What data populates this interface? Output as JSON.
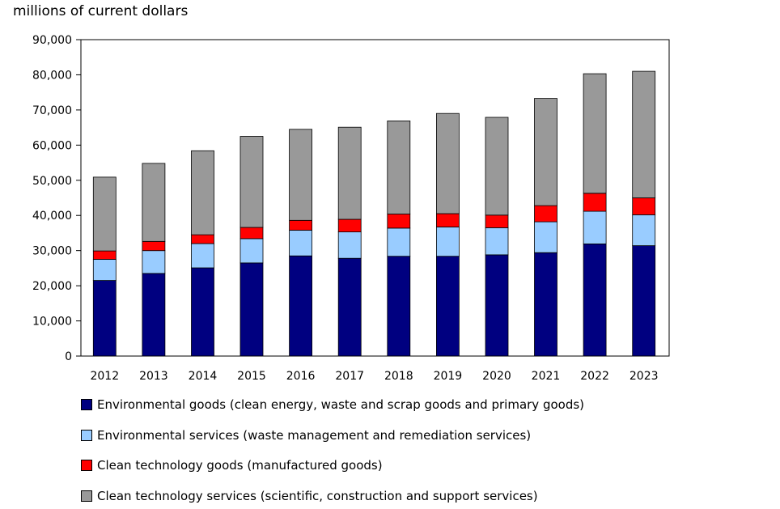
{
  "chart_data": {
    "type": "bar",
    "stacked": true,
    "title": "",
    "xlabel": "",
    "ylabel": "millions of current dollars",
    "ylim": [
      0,
      90000
    ],
    "yticks": [
      0,
      10000,
      20000,
      30000,
      40000,
      50000,
      60000,
      70000,
      80000,
      90000
    ],
    "ytick_labels": [
      "0",
      "10,000",
      "20,000",
      "30,000",
      "40,000",
      "50,000",
      "60,000",
      "70,000",
      "80,000",
      "90,000"
    ],
    "grid": false,
    "legend_position": "bottom",
    "categories": [
      "2012",
      "2013",
      "2014",
      "2015",
      "2016",
      "2017",
      "2018",
      "2019",
      "2020",
      "2021",
      "2022",
      "2023"
    ],
    "series": [
      {
        "name": "Environmental goods (clean energy, waste and scrap goods and primary goods)",
        "color": "#000080",
        "values": [
          21500,
          23500,
          25100,
          26500,
          28500,
          27800,
          28400,
          28400,
          28800,
          29400,
          31900,
          31400
        ]
      },
      {
        "name": "Environmental services (waste management and remediation services)",
        "color": "#99ccff",
        "values": [
          6000,
          6500,
          6900,
          6900,
          7300,
          7500,
          8000,
          8300,
          7700,
          8800,
          9300,
          8800
        ]
      },
      {
        "name": "Clean technology goods (manufactured goods)",
        "color": "#ff0000",
        "values": [
          2400,
          2600,
          2500,
          3200,
          2800,
          3600,
          4000,
          3800,
          3600,
          4600,
          5100,
          4800
        ]
      },
      {
        "name": "Clean technology services (scientific, construction and support services)",
        "color": "#999999",
        "values": [
          21000,
          22200,
          23900,
          25900,
          25900,
          26200,
          26500,
          28500,
          27800,
          30500,
          34000,
          36000
        ]
      }
    ]
  }
}
